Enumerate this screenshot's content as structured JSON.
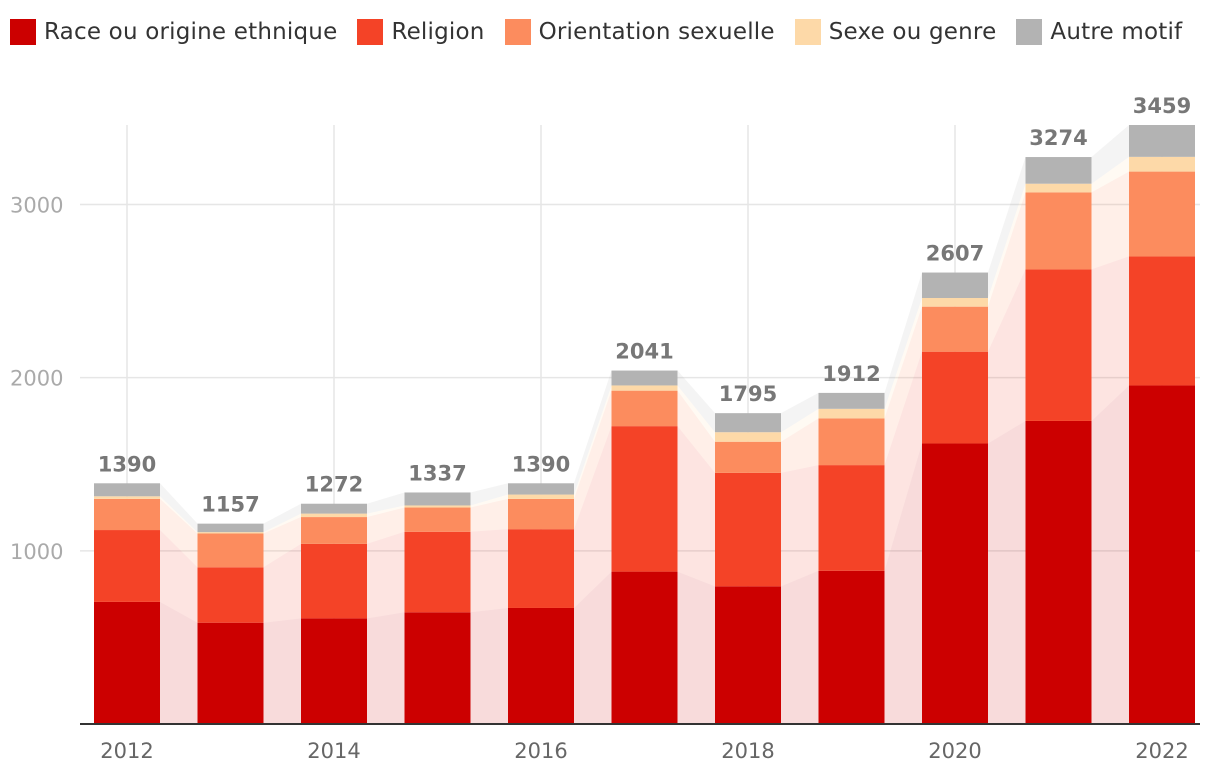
{
  "chart_data": {
    "type": "bar",
    "stacked": true,
    "title": "",
    "xlabel": "",
    "ylabel": "",
    "ylim": [
      0,
      3459
    ],
    "x": [
      2012,
      2013,
      2014,
      2015,
      2016,
      2017,
      2018,
      2019,
      2020,
      2021,
      2022
    ],
    "x_tick_labels": [
      "2012",
      "2014",
      "2016",
      "2018",
      "2020",
      "2022"
    ],
    "y_ticks": [
      1000,
      2000,
      3000
    ],
    "y_tick_labels": [
      "1000",
      "2000",
      "3000"
    ],
    "grid": true,
    "legend_position": "top-left",
    "series": [
      {
        "name": "Race ou origine ethnique",
        "color": "#cc0000",
        "values": [
          705,
          585,
          610,
          645,
          670,
          880,
          795,
          885,
          1620,
          1750,
          1955
        ]
      },
      {
        "name": "Religion",
        "color": "#f44327",
        "values": [
          415,
          320,
          430,
          465,
          455,
          840,
          655,
          610,
          530,
          875,
          745
        ]
      },
      {
        "name": "Orientation sexuelle",
        "color": "#fc8c5e",
        "values": [
          180,
          195,
          155,
          140,
          175,
          205,
          180,
          270,
          260,
          445,
          490
        ]
      },
      {
        "name": "Sexe ou genre",
        "color": "#fdd9a8",
        "values": [
          15,
          8,
          20,
          12,
          25,
          30,
          55,
          55,
          50,
          50,
          85
        ]
      },
      {
        "name": "Autre motif",
        "color": "#b3b3b3",
        "values": [
          75,
          49,
          57,
          75,
          65,
          86,
          110,
          92,
          147,
          154,
          184
        ]
      }
    ],
    "totals": [
      1390,
      1157,
      1272,
      1337,
      1390,
      2041,
      1795,
      1912,
      2607,
      3274,
      3459
    ]
  }
}
